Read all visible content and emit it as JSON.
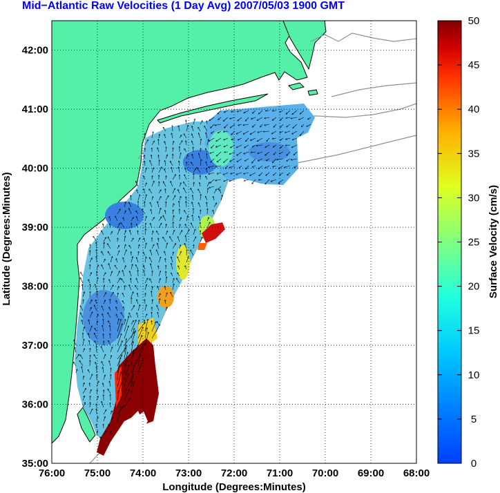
{
  "title": "Mid−Atlantic Raw Velocities (1 Day Avg) 2007/05/03 1900 GMT",
  "xlabel": "Longitude (Degrees:Minutes)",
  "ylabel": "Latitude (Degrees:Minutes)",
  "colorbar_label": "Surface Velocity (cm/s)",
  "x_ticks": [
    "76:00",
    "75:00",
    "74:00",
    "73:00",
    "72:00",
    "71:00",
    "70:00",
    "69:00",
    "68:00"
  ],
  "y_ticks": [
    "42:00",
    "41:00",
    "40:00",
    "39:00",
    "38:00",
    "37:00",
    "36:00",
    "35:00"
  ],
  "colorbar_ticks": [
    "50",
    "45",
    "40",
    "35",
    "30",
    "25",
    "20",
    "15",
    "10",
    "5",
    "0"
  ],
  "colors": {
    "title": "#0000ff",
    "land": "#55f0a8",
    "ocean_background": "#ffffff",
    "grid": "#000000",
    "bathymetry_contour": "#909090"
  },
  "chart_data": {
    "type": "heatmap",
    "xlim": [
      -76,
      -68
    ],
    "ylim": [
      35,
      42.5
    ],
    "clim": [
      0,
      50
    ],
    "colormap": "jet",
    "grid": "dotted",
    "colorbar": "right"
  }
}
